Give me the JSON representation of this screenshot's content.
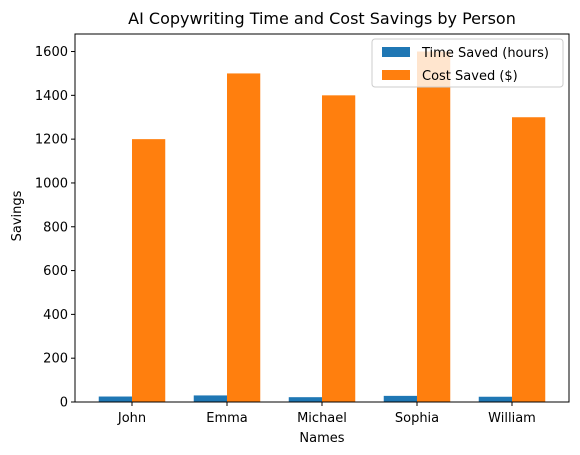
{
  "chart_data": {
    "type": "bar",
    "title": "AI Copywriting Time and Cost Savings by Person",
    "xlabel": "Names",
    "ylabel": "Savings",
    "categories": [
      "John",
      "Emma",
      "Michael",
      "Sophia",
      "William"
    ],
    "series": [
      {
        "name": "Time Saved (hours)",
        "values": [
          25,
          30,
          22,
          28,
          24
        ],
        "color": "#1f77b4"
      },
      {
        "name": "Cost Saved ($)",
        "values": [
          1200,
          1500,
          1400,
          1600,
          1300
        ],
        "color": "#ff7f0e"
      }
    ],
    "ylim": [
      0,
      1680
    ],
    "yticks": [
      0,
      200,
      400,
      600,
      800,
      1000,
      1200,
      1400,
      1600
    ],
    "grid": false,
    "legend": "top-right"
  }
}
